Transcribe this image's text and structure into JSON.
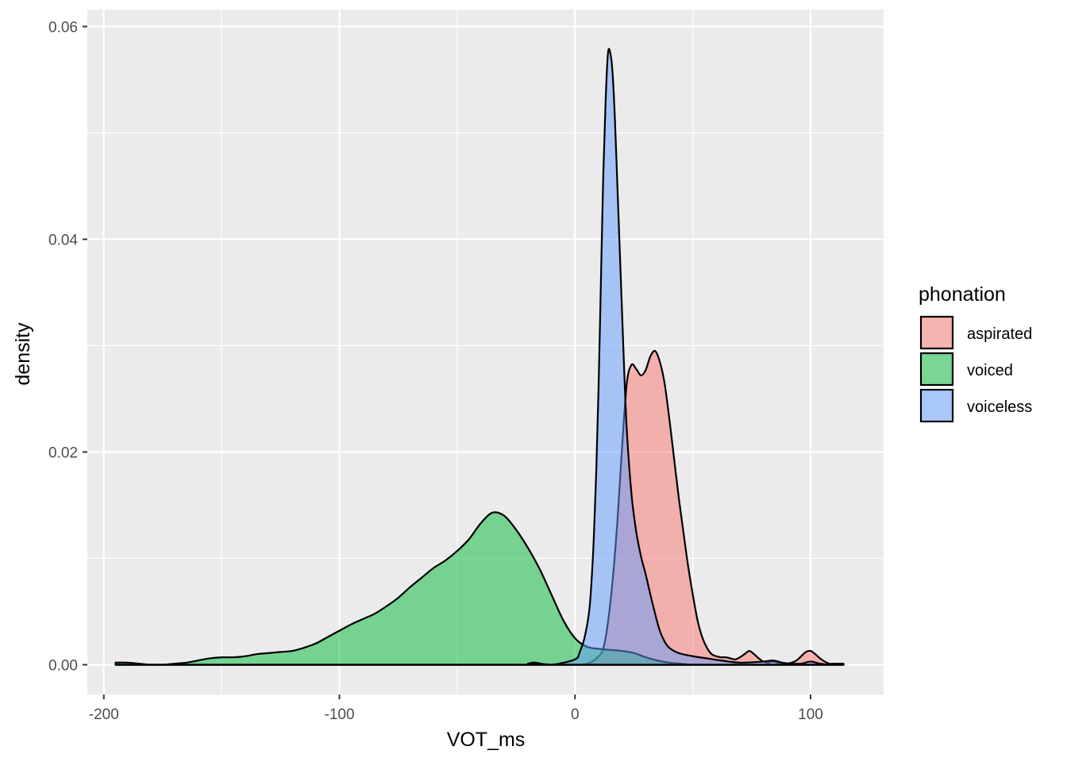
{
  "chart_data": {
    "type": "area",
    "subtype": "density",
    "xlabel": "VOT_ms",
    "ylabel": "density",
    "xlim": [
      -207,
      131
    ],
    "ylim": [
      -0.0028,
      0.0616
    ],
    "x_ticks": [
      -200,
      -100,
      0,
      100
    ],
    "x_tick_labels": [
      "-200",
      "-100",
      "0",
      "100"
    ],
    "y_ticks": [
      0.0,
      0.02,
      0.04,
      0.06
    ],
    "y_tick_labels": [
      "0.00",
      "0.02",
      "0.04",
      "0.06"
    ],
    "grid": true,
    "legend": {
      "title": "phonation",
      "position": "right"
    },
    "fill_alpha": 0.5,
    "series": [
      {
        "name": "aspirated",
        "color": "#F8766D",
        "x": [
          -195,
          -10,
          0,
          5,
          8,
          10,
          12,
          14,
          16,
          18,
          20,
          22,
          24,
          26,
          28,
          30,
          32,
          34,
          36,
          38,
          40,
          42,
          44,
          46,
          48,
          50,
          52,
          54,
          56,
          58,
          60,
          62,
          64,
          66,
          68,
          70,
          72,
          74,
          76,
          78,
          80,
          82,
          84,
          86,
          88,
          90,
          92,
          94,
          96,
          98,
          100,
          102,
          104,
          106,
          108,
          110,
          114
        ],
        "y": [
          0.0,
          0.0,
          0.0,
          0.0001,
          0.0004,
          0.0008,
          0.0015,
          0.004,
          0.008,
          0.0135,
          0.0205,
          0.0265,
          0.0282,
          0.0278,
          0.0272,
          0.0277,
          0.029,
          0.0295,
          0.0285,
          0.0265,
          0.0232,
          0.0195,
          0.0158,
          0.0125,
          0.0093,
          0.0066,
          0.0042,
          0.0026,
          0.0016,
          0.001,
          0.0008,
          0.0007,
          0.0007,
          0.0006,
          0.0005,
          0.0007,
          0.001,
          0.0013,
          0.001,
          0.0006,
          0.0003,
          0.0002,
          0.0003,
          0.0002,
          0.0001,
          0.0001,
          0.0002,
          0.0004,
          0.0008,
          0.0012,
          0.0013,
          0.001,
          0.0006,
          0.0003,
          0.0001,
          0.0001,
          0.0001
        ]
      },
      {
        "name": "voiced",
        "color": "#00BA38",
        "x": [
          -195,
          -190,
          -185,
          -180,
          -175,
          -170,
          -165,
          -160,
          -155,
          -150,
          -145,
          -140,
          -135,
          -130,
          -125,
          -120,
          -115,
          -110,
          -105,
          -100,
          -95,
          -90,
          -85,
          -80,
          -75,
          -70,
          -65,
          -60,
          -55,
          -50,
          -45,
          -40,
          -35,
          -30,
          -25,
          -20,
          -15,
          -10,
          -5,
          0,
          5,
          10,
          15,
          20,
          25,
          30,
          35,
          40,
          45,
          50,
          55,
          60,
          70,
          80,
          90,
          100,
          114
        ],
        "y": [
          0.0002,
          0.0002,
          0.0001,
          0.0,
          0.0,
          0.0001,
          0.0002,
          0.0004,
          0.0006,
          0.0007,
          0.0007,
          0.0008,
          0.001,
          0.0011,
          0.0012,
          0.0013,
          0.0016,
          0.002,
          0.0026,
          0.0032,
          0.0038,
          0.0043,
          0.0048,
          0.0055,
          0.0063,
          0.0073,
          0.0082,
          0.0091,
          0.0098,
          0.0107,
          0.0118,
          0.0133,
          0.0143,
          0.014,
          0.0127,
          0.011,
          0.009,
          0.0066,
          0.0042,
          0.0025,
          0.0017,
          0.0015,
          0.0014,
          0.0013,
          0.0011,
          0.0007,
          0.0004,
          0.0002,
          0.0001,
          0.0,
          0.0,
          0.0,
          0.0,
          0.0,
          0.0,
          0.0,
          0.0
        ]
      },
      {
        "name": "voiceless",
        "color": "#619CFF",
        "x": [
          -195,
          -25,
          -20,
          -17,
          -10,
          0,
          2,
          4,
          6,
          7,
          8,
          9,
          10,
          11,
          12,
          13,
          14,
          15,
          16,
          17,
          18,
          19,
          20,
          21,
          22,
          24,
          26,
          28,
          30,
          32,
          34,
          36,
          38,
          40,
          44,
          50,
          56,
          62,
          70,
          80,
          84,
          88,
          92,
          96,
          100,
          104,
          108,
          114
        ],
        "y": [
          0.0,
          0.0,
          0.0001,
          0.0002,
          0.0,
          0.0005,
          0.0012,
          0.0025,
          0.005,
          0.0078,
          0.012,
          0.018,
          0.026,
          0.036,
          0.046,
          0.053,
          0.0575,
          0.0575,
          0.0555,
          0.051,
          0.045,
          0.039,
          0.033,
          0.027,
          0.022,
          0.016,
          0.0125,
          0.0102,
          0.0085,
          0.0066,
          0.0048,
          0.0032,
          0.0022,
          0.0016,
          0.0011,
          0.0008,
          0.0006,
          0.0004,
          0.0002,
          0.0003,
          0.0004,
          0.0002,
          0.0001,
          0.0001,
          0.0003,
          0.0001,
          0.0,
          0.0
        ]
      }
    ]
  }
}
